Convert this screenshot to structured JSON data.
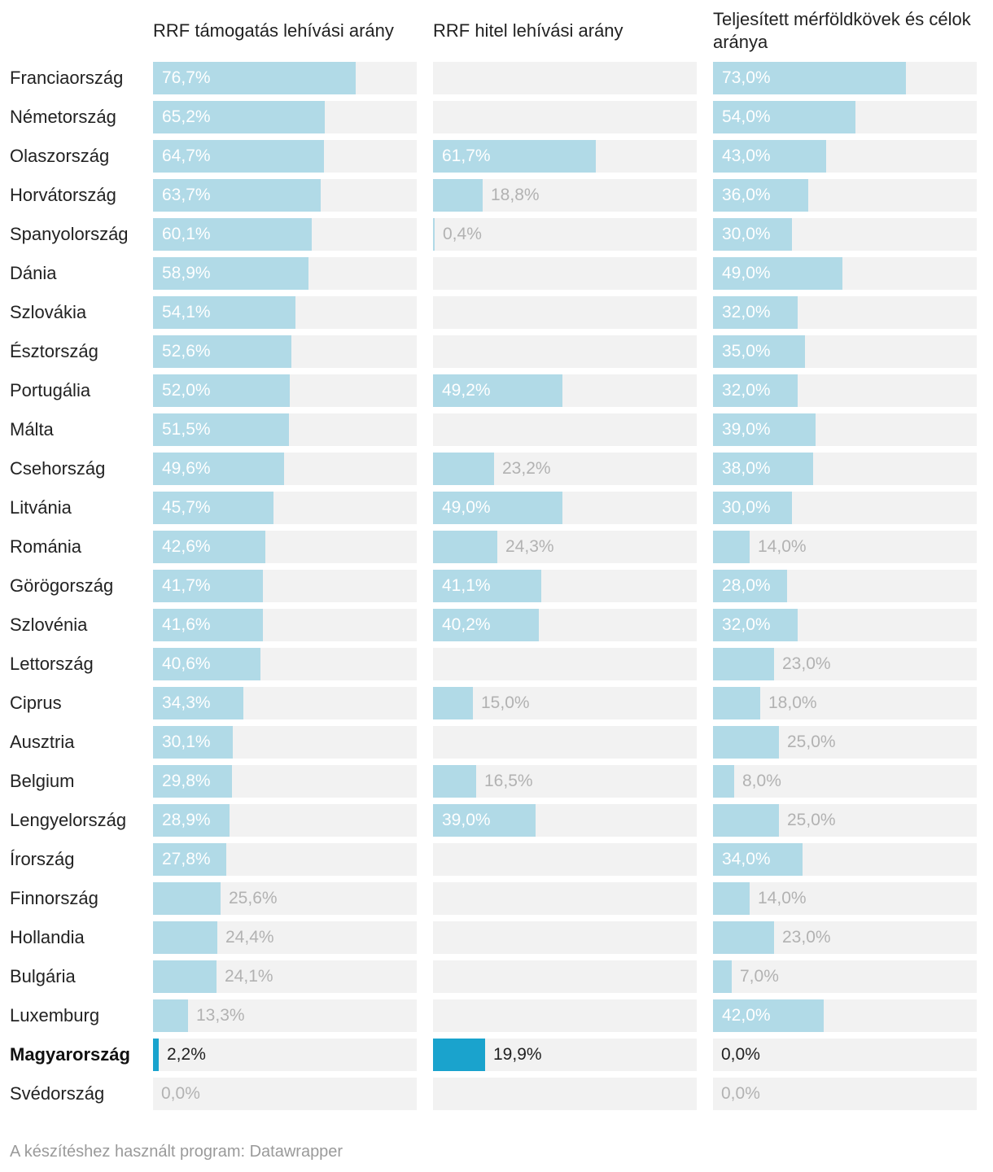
{
  "chart_data": {
    "type": "bar",
    "subtype": "split-horizontal-bars",
    "categories": [
      "Franciaország",
      "Németország",
      "Olaszország",
      "Horvátország",
      "Spanyolország",
      "Dánia",
      "Szlovákia",
      "Észtország",
      "Portugália",
      "Málta",
      "Csehország",
      "Litvánia",
      "Románia",
      "Görögország",
      "Szlovénia",
      "Lettország",
      "Ciprus",
      "Ausztria",
      "Belgium",
      "Lengyelország",
      "Írország",
      "Finnország",
      "Hollandia",
      "Bulgária",
      "Luxemburg",
      "Magyarország",
      "Svédország"
    ],
    "highlight": "Magyarország",
    "xlim": [
      0,
      100
    ],
    "series": [
      {
        "name": "RRF támogatás lehívási arány",
        "values": [
          76.7,
          65.2,
          64.7,
          63.7,
          60.1,
          58.9,
          54.1,
          52.6,
          52.0,
          51.5,
          49.6,
          45.7,
          42.6,
          41.7,
          41.6,
          40.6,
          34.3,
          30.1,
          29.8,
          28.9,
          27.8,
          25.6,
          24.4,
          24.1,
          13.3,
          2.2,
          0.0
        ],
        "labels": [
          "76,7%",
          "65,2%",
          "64,7%",
          "63,7%",
          "60,1%",
          "58,9%",
          "54,1%",
          "52,6%",
          "52,0%",
          "51,5%",
          "49,6%",
          "45,7%",
          "42,6%",
          "41,7%",
          "41,6%",
          "40,6%",
          "34,3%",
          "30,1%",
          "29,8%",
          "28,9%",
          "27,8%",
          "25,6%",
          "24,4%",
          "24,1%",
          "13,3%",
          "2,2%",
          "0,0%"
        ]
      },
      {
        "name": "RRF hitel lehívási arány",
        "values": [
          null,
          null,
          61.7,
          18.8,
          0.4,
          null,
          null,
          null,
          49.2,
          null,
          23.2,
          49.0,
          24.3,
          41.1,
          40.2,
          null,
          15.0,
          null,
          16.5,
          39.0,
          null,
          null,
          null,
          null,
          null,
          19.9,
          null
        ],
        "labels": [
          null,
          null,
          "61,7%",
          "18,8%",
          "0,4%",
          null,
          null,
          null,
          "49,2%",
          null,
          "23,2%",
          "49,0%",
          "24,3%",
          "41,1%",
          "40,2%",
          null,
          "15,0%",
          null,
          "16,5%",
          "39,0%",
          null,
          null,
          null,
          null,
          null,
          "19,9%",
          null
        ]
      },
      {
        "name": "Teljesített mérföldkövek és célok aránya",
        "values": [
          73.0,
          54.0,
          43.0,
          36.0,
          30.0,
          49.0,
          32.0,
          35.0,
          32.0,
          39.0,
          38.0,
          30.0,
          14.0,
          28.0,
          32.0,
          23.0,
          18.0,
          25.0,
          8.0,
          25.0,
          34.0,
          14.0,
          23.0,
          7.0,
          42.0,
          0.0,
          0.0
        ],
        "labels": [
          "73,0%",
          "54,0%",
          "43,0%",
          "36,0%",
          "30,0%",
          "49,0%",
          "32,0%",
          "35,0%",
          "32,0%",
          "39,0%",
          "38,0%",
          "30,0%",
          "14,0%",
          "28,0%",
          "32,0%",
          "23,0%",
          "18,0%",
          "25,0%",
          "8,0%",
          "25,0%",
          "34,0%",
          "14,0%",
          "23,0%",
          "7,0%",
          "42,0%",
          "0,0%",
          "0,0%"
        ]
      }
    ],
    "colors": {
      "bar": "#b1dae7",
      "highlight_bar": "#1aa3cd",
      "track": "#f2f2f2",
      "label_outside": "#b2b2b2",
      "label_inside": "#ffffff",
      "label_highlight": "#222222"
    }
  },
  "footer": "A készítéshez használt program: Datawrapper"
}
